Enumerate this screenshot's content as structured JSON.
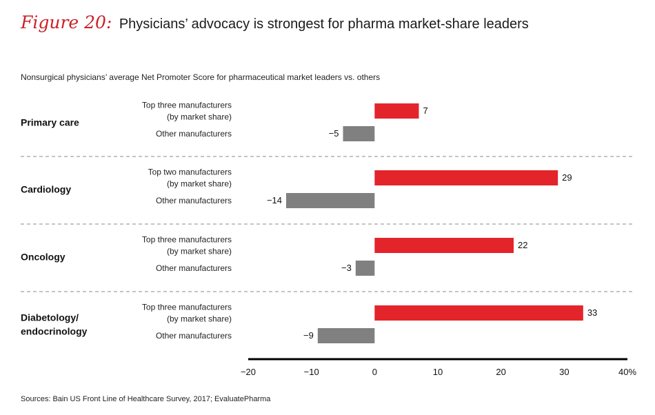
{
  "figure": {
    "label": "Figure 20:",
    "title": "Physicians’ advocacy is strongest for pharma market-share leaders"
  },
  "chart_data": {
    "type": "bar",
    "orientation": "horizontal",
    "title": "Physicians’ advocacy is strongest for pharma market-share leaders",
    "subtitle": "Nonsurgical physicians’ average Net Promoter Score for pharmaceutical market leaders vs. others",
    "xlim": [
      -20,
      40
    ],
    "ticks": [
      -20,
      -10,
      0,
      10,
      20,
      30,
      40
    ],
    "tick_labels": [
      "−20",
      "−10",
      "0",
      "10",
      "20",
      "30",
      "40%"
    ],
    "colors": {
      "leaders": "#e3242b",
      "others": "#808080"
    },
    "groups": [
      {
        "name": [
          "Primary care"
        ],
        "bars": [
          {
            "label": [
              "Top three manufacturers",
              "(by market share)"
            ],
            "value": 7,
            "value_label": "7",
            "series": "leaders"
          },
          {
            "label": [
              "Other manufacturers"
            ],
            "value": -5,
            "value_label": "−5",
            "series": "others"
          }
        ]
      },
      {
        "name": [
          "Cardiology"
        ],
        "bars": [
          {
            "label": [
              "Top two manufacturers",
              "(by market share)"
            ],
            "value": 29,
            "value_label": "29",
            "series": "leaders"
          },
          {
            "label": [
              "Other manufacturers"
            ],
            "value": -14,
            "value_label": "−14",
            "series": "others"
          }
        ]
      },
      {
        "name": [
          "Oncology"
        ],
        "bars": [
          {
            "label": [
              "Top three manufacturers",
              "(by market share)"
            ],
            "value": 22,
            "value_label": "22",
            "series": "leaders"
          },
          {
            "label": [
              "Other manufacturers"
            ],
            "value": -3,
            "value_label": "−3",
            "series": "others"
          }
        ]
      },
      {
        "name": [
          "Diabetology/",
          "endocrinology"
        ],
        "bars": [
          {
            "label": [
              "Top three manufacturers",
              "(by market share)"
            ],
            "value": 33,
            "value_label": "33",
            "series": "leaders"
          },
          {
            "label": [
              "Other manufacturers"
            ],
            "value": -9,
            "value_label": "−9",
            "series": "others"
          }
        ]
      }
    ]
  },
  "source": "Sources: Bain US Front Line of Healthcare Survey, 2017; EvaluatePharma"
}
